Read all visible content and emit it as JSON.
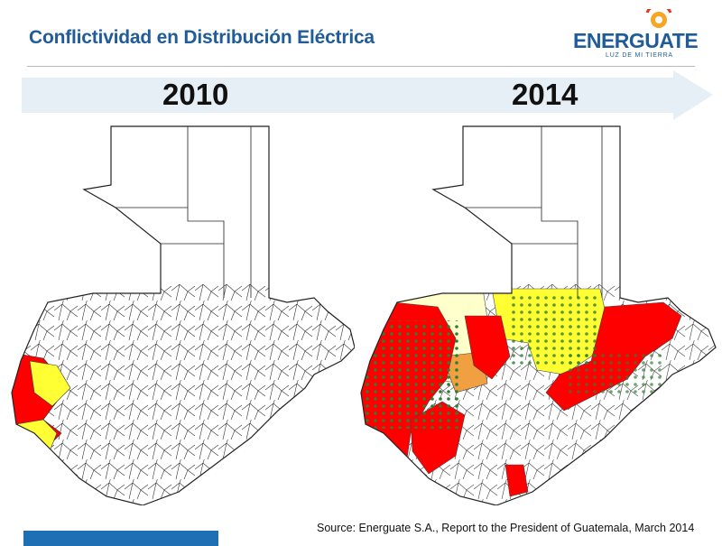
{
  "header": {
    "title": "Conflictividad en Distribución Eléctrica"
  },
  "logo": {
    "name": "ENERGUATE",
    "tagline": "LUZ DE MI TIERRA",
    "colors": {
      "text": "#1f5c99",
      "sun": "#f5a623",
      "accent": "#e03a1e"
    }
  },
  "timeline": {
    "start_year": "2010",
    "end_year": "2014",
    "arrow_color": "#e6eef6"
  },
  "maps": {
    "left": {
      "year": "2010"
    },
    "right": {
      "year": "2014"
    },
    "colors": {
      "high_conflict": "#ff0000",
      "medium_conflict": "#ffff33",
      "low_conflict": "#ffffcc",
      "orange": "#f0a040",
      "incident_point": "#2e7d32"
    }
  },
  "footer": {
    "source": "Source: Energuate S.A., Report to the President of Guatemala, March 2014",
    "bar_color": "#1f6fb5"
  }
}
